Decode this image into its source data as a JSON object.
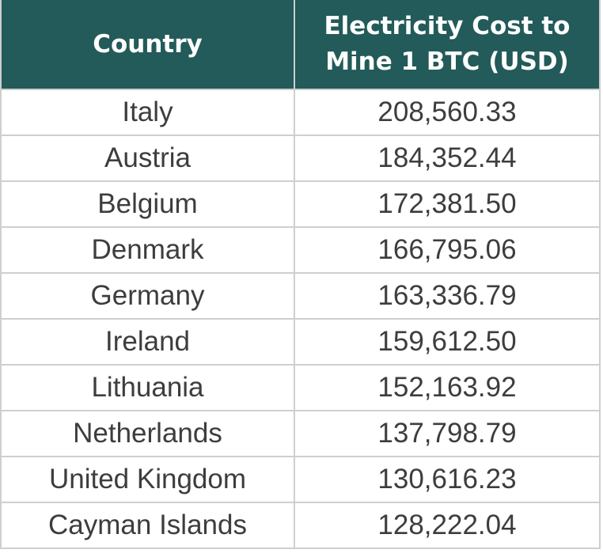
{
  "table": {
    "headers": [
      "Country",
      "Electricity Cost to Mine 1 BTC (USD)"
    ],
    "rows": [
      {
        "country": "Italy",
        "cost": "208,560.33"
      },
      {
        "country": "Austria",
        "cost": "184,352.44"
      },
      {
        "country": "Belgium",
        "cost": "172,381.50"
      },
      {
        "country": "Denmark",
        "cost": "166,795.06"
      },
      {
        "country": "Germany",
        "cost": "163,336.79"
      },
      {
        "country": "Ireland",
        "cost": "159,612.50"
      },
      {
        "country": "Lithuania",
        "cost": "152,163.92"
      },
      {
        "country": "Netherlands",
        "cost": "137,798.79"
      },
      {
        "country": "United Kingdom",
        "cost": "130,616.23"
      },
      {
        "country": "Cayman Islands",
        "cost": "128,222.04"
      }
    ]
  },
  "colors": {
    "header_bg": "#235a5a",
    "header_text": "#ffffff",
    "cell_text": "#3d3d3d",
    "border": "#cfcfcf"
  }
}
